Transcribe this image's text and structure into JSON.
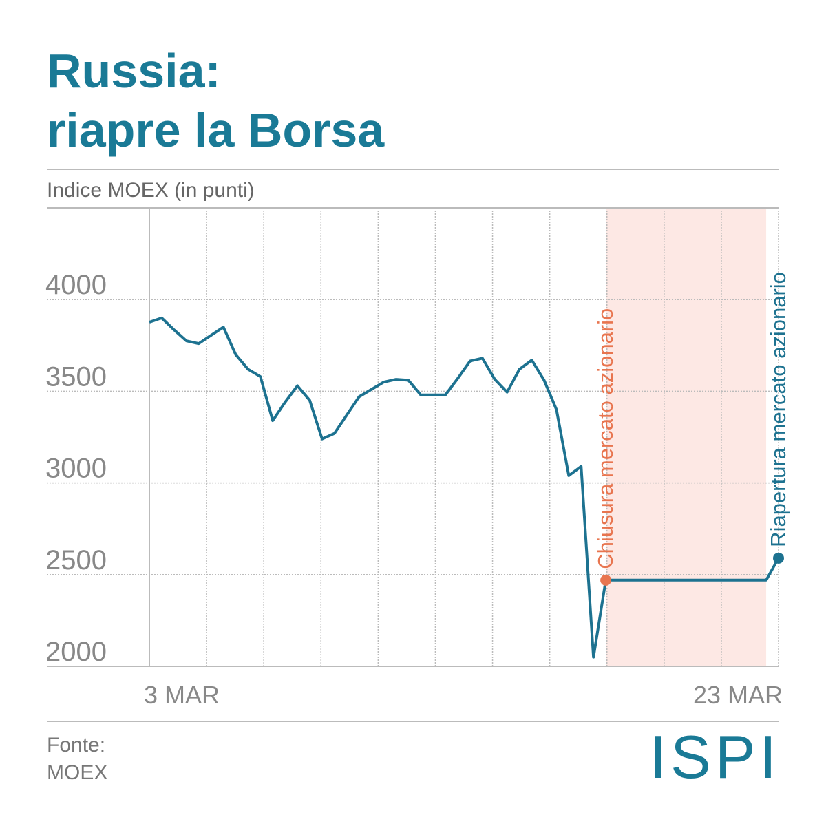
{
  "chart_data": {
    "type": "line",
    "title": [
      "Russia:",
      "riapre la Borsa"
    ],
    "subtitle": "Indice MOEX (in punti)",
    "categories": [
      "3 MAR",
      null,
      null,
      null,
      null,
      null,
      null,
      null,
      null,
      null,
      null,
      null,
      null,
      null,
      null,
      null,
      null,
      null,
      null,
      null,
      null,
      null,
      null,
      null,
      null,
      null,
      null,
      null,
      null,
      null,
      null,
      null,
      null,
      null,
      null,
      null,
      null,
      null,
      null,
      null,
      null,
      null,
      null,
      null,
      null,
      null,
      null,
      null,
      null,
      null,
      null,
      "23 MAR"
    ],
    "series": [
      {
        "name": "MOEX",
        "color": "#1d7290",
        "values": [
          3877,
          3900,
          3835,
          3775,
          3760,
          3805,
          3850,
          3700,
          3620,
          3580,
          3340,
          3440,
          3530,
          3450,
          3240,
          3270,
          3370,
          3470,
          3510,
          3550,
          3565,
          3560,
          3480,
          3480,
          3480,
          3570,
          3665,
          3680,
          3565,
          3495,
          3620,
          3670,
          3560,
          3400,
          3040,
          3090,
          2050,
          2470,
          2470,
          2470,
          2470,
          2470,
          2470,
          2470,
          2470,
          2470,
          2470,
          2470,
          2470,
          2470,
          2470,
          2590
        ]
      }
    ],
    "ylim": [
      2000,
      4500
    ],
    "yticks": [
      2000,
      2500,
      3000,
      3500,
      4000
    ],
    "grid": true,
    "shaded_range": [
      37,
      50
    ],
    "shade_color": "#fde8e4",
    "annotations": [
      {
        "text": "Chiusura mercato azionario",
        "index": 37,
        "color": "#e8754f"
      },
      {
        "text": "Riapertura mercato azionario",
        "index": 51,
        "color": "#1d7290"
      }
    ],
    "source": [
      "Fonte:",
      "MOEX"
    ],
    "logo": "ISPI"
  }
}
